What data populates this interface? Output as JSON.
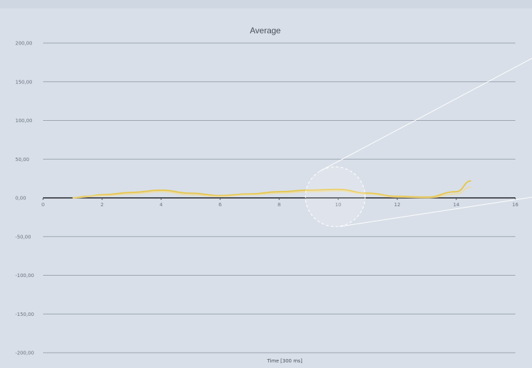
{
  "chart_data": {
    "type": "line",
    "title": "Average",
    "xlabel": "Time [300 ms]",
    "ylabel": "",
    "xlim": [
      0,
      16
    ],
    "ylim": [
      -200,
      200
    ],
    "y_ticks": [
      -200,
      -150,
      -100,
      -50,
      0,
      50,
      100,
      150,
      200
    ],
    "y_tick_labels": [
      "-200,00",
      "-150,00",
      "-100,00",
      "-50,00",
      "0,00",
      "50,00",
      "100,00",
      "150,00",
      "200,00"
    ],
    "x_ticks": [
      0,
      2,
      4,
      6,
      8,
      10,
      12,
      14,
      16
    ],
    "x_tick_labels": [
      "0",
      "2",
      "4",
      "6",
      "8",
      "10",
      "12",
      "14",
      "16"
    ],
    "grid": true,
    "series": [
      {
        "color": "#e8c547",
        "x": [
          1,
          1.5,
          2,
          3,
          4,
          5,
          6,
          7,
          8,
          9,
          10,
          11,
          12,
          13,
          14,
          14.5
        ],
        "values": [
          0,
          2,
          4,
          7,
          10,
          6,
          3,
          5,
          8,
          10,
          11,
          6,
          2,
          1,
          8,
          22
        ]
      },
      {
        "color": "#f3d98a",
        "x": [
          1,
          2,
          3,
          4,
          5,
          6,
          7,
          8,
          9,
          10,
          11,
          12,
          13,
          14,
          14.5
        ],
        "values": [
          0,
          3,
          5,
          8,
          4,
          2,
          4,
          6,
          8,
          9,
          5,
          1,
          0,
          5,
          14
        ]
      }
    ],
    "annotation": "magnifier"
  }
}
